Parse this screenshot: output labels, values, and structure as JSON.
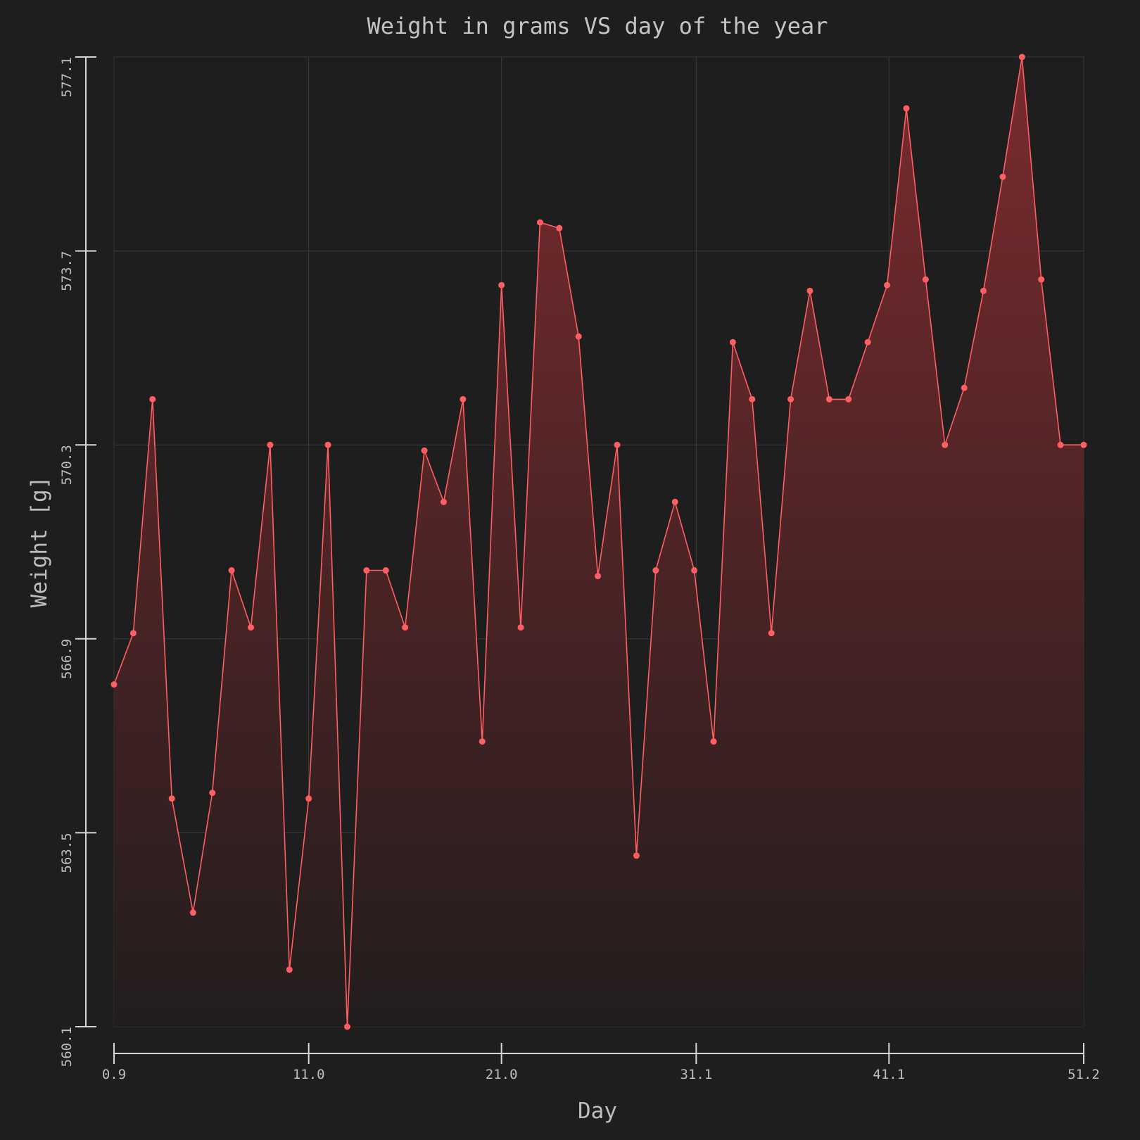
{
  "chart_data": {
    "type": "area",
    "title": "Weight in grams VS day of the year",
    "xlabel": "Day",
    "ylabel": "Weight [g]",
    "xlim": [
      0.9,
      51.2
    ],
    "ylim": [
      560.1,
      577.1
    ],
    "xticks": [
      "0.9",
      "11.0",
      "21.0",
      "31.1",
      "41.1",
      "51.2"
    ],
    "yticks": [
      "560.1",
      "563.5",
      "566.9",
      "570.3",
      "573.7",
      "577.1"
    ],
    "grid": true,
    "colors": {
      "line": "#ff5e62",
      "fill_top": "#7a2b2e",
      "fill_bottom": "#221d1d",
      "background": "#1e1e1e"
    },
    "series": [
      {
        "x": [
          0.9,
          1.9,
          2.9,
          3.9,
          5.0,
          6.0,
          7.0,
          8.0,
          9.0,
          10.0,
          11.0,
          12.0,
          13.0,
          14.0,
          15.0,
          16.0,
          17.0,
          18.0,
          19.0,
          20.0,
          21.0,
          22.0,
          23.0,
          24.0,
          25.0,
          26.0,
          27.0,
          28.0,
          29.0,
          30.0,
          31.0,
          32.0,
          33.0,
          34.0,
          35.0,
          36.0,
          37.0,
          38.0,
          39.0,
          40.0,
          41.0,
          42.0,
          43.0,
          44.0,
          45.0,
          46.0,
          47.0,
          48.0,
          49.0,
          50.0,
          51.2
        ],
        "y": [
          566.1,
          567.0,
          571.1,
          564.1,
          562.1,
          564.2,
          568.1,
          567.1,
          570.3,
          561.1,
          564.1,
          570.3,
          560.1,
          568.1,
          568.1,
          567.1,
          570.2,
          569.3,
          571.1,
          565.1,
          573.1,
          567.1,
          574.2,
          574.1,
          572.2,
          568.0,
          570.3,
          563.1,
          568.1,
          569.3,
          568.1,
          565.1,
          572.1,
          571.1,
          567.0,
          571.1,
          573.0,
          571.1,
          571.1,
          572.1,
          573.1,
          576.2,
          573.2,
          570.3,
          571.3,
          573.0,
          575.0,
          577.1,
          573.2,
          570.3,
          570.3
        ]
      }
    ]
  }
}
